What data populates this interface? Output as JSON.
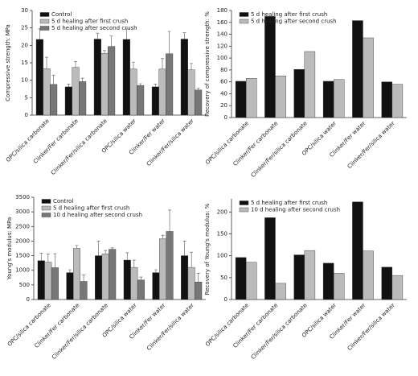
{
  "chart_data": [
    {
      "type": "bar",
      "y_label": "Compressive strength: MPa",
      "categories": [
        "OPC/silica carbonate",
        "Clinker/Fer carbonate",
        "Clinker/Fer/silica carbonate",
        "OPC/silica water",
        "Clinker/Fer water",
        "Clinker/Fer/silica water"
      ],
      "series": [
        {
          "name": "Control",
          "color": "#111111",
          "values": [
            21.7,
            8.1,
            21.8,
            21.7,
            8.1,
            21.8
          ],
          "errors": [
            3,
            0.8,
            1.7,
            3,
            0.8,
            1.8
          ]
        },
        {
          "name": "5 d healing after first crush",
          "color": "#bbbbbb",
          "values": [
            13.3,
            13.7,
            17.7,
            13.2,
            13.2,
            13
          ],
          "errors": [
            3.3,
            1.7,
            0.8,
            2,
            3,
            1.8
          ]
        },
        {
          "name": "5 d healing after second crush",
          "color": "#777777",
          "values": [
            8.8,
            9.6,
            19.7,
            8.5,
            17.6,
            7.2
          ],
          "errors": [
            2.7,
            1,
            3,
            0.5,
            6.4,
            0.5
          ]
        }
      ],
      "ylim": [
        0,
        30
      ],
      "yticks": [
        0,
        5,
        10,
        15,
        20,
        25,
        30
      ]
    },
    {
      "type": "bar",
      "y_label": "Recovery of compressive strength: %",
      "categories": [
        "OPC/silica carbonate",
        "Clinker/Fer carbonate",
        "Clinker/Fer/silica carbonate",
        "OPC/silica water",
        "Clinker/Fer water",
        "Clinker/Fer/silica water"
      ],
      "series": [
        {
          "name": "5 d healing after first crush",
          "color": "#111111",
          "values": [
            61,
            170,
            81,
            61,
            163,
            60
          ]
        },
        {
          "name": "5 d healing after second crush",
          "color": "#bbbbbb",
          "values": [
            66,
            70,
            111,
            64,
            134,
            56
          ]
        }
      ],
      "ylim": [
        0,
        180
      ],
      "yticks": [
        0,
        20,
        40,
        60,
        80,
        100,
        120,
        140,
        160,
        180
      ]
    },
    {
      "type": "bar",
      "y_label": "Young's modulus: MPa",
      "categories": [
        "OPC/silica carbonate",
        "Clinker/Fer carbonate",
        "Clinker/Fer/silica carbonate",
        "OPC/silica water",
        "Clinker/Fer water",
        "Clinker/Fer/silica water"
      ],
      "series": [
        {
          "name": "Control",
          "color": "#111111",
          "values": [
            1330,
            920,
            1500,
            1350,
            920,
            1500
          ],
          "errors": [
            250,
            100,
            500,
            250,
            100,
            500
          ]
        },
        {
          "name": "5 d healing after first crush",
          "color": "#bbbbbb",
          "values": [
            1280,
            1750,
            1560,
            1100,
            2080,
            1100
          ],
          "errors": [
            280,
            100,
            120,
            250,
            120,
            520
          ]
        },
        {
          "name": "10 d healing after second crush",
          "color": "#777777",
          "values": [
            1090,
            620,
            1720,
            670,
            2330,
            600
          ],
          "errors": [
            480,
            220,
            50,
            100,
            730,
            300
          ]
        }
      ],
      "ylim": [
        0,
        3500
      ],
      "yticks": [
        0,
        500,
        1000,
        1500,
        2000,
        2500,
        3000,
        3500
      ]
    },
    {
      "type": "bar",
      "y_label": "Recovery of Young's modulus: %",
      "categories": [
        "OPC/silica carbonate",
        "Clinker/Fer carbonate",
        "Clinker/Fer/silica carbonate",
        "OPC/silica water",
        "Clinker/Fer water",
        "Clinker/Fer/silica water"
      ],
      "series": [
        {
          "name": "5 d healing after first crush",
          "color": "#111111",
          "values": [
            96,
            187,
            102,
            83,
            223,
            74
          ]
        },
        {
          "name": "10 d healing after second crush",
          "color": "#bbbbbb",
          "values": [
            85,
            37,
            112,
            60,
            111,
            55
          ]
        }
      ],
      "ylim": [
        0,
        230
      ],
      "yticks": [
        0,
        50,
        100,
        150,
        200
      ]
    }
  ]
}
